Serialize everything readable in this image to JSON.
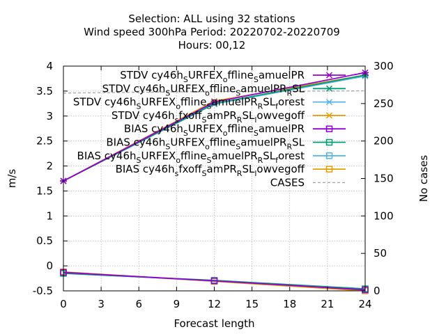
{
  "chart_data": {
    "type": "line",
    "title": [
      "Selection: ALL using    32 stations",
      "Wind speed 300hPa   Period: 20220702-20220709",
      "Hours:  00,12"
    ],
    "xlabel": "Forecast length",
    "ylabel": "m/s",
    "y2label": "No cases",
    "xlim": [
      0,
      24
    ],
    "ylim": [
      -0.5,
      4
    ],
    "y2lim": [
      0,
      300
    ],
    "xticks": [
      "0",
      "3",
      "6",
      "9",
      "12",
      "15",
      "18",
      "21",
      "24"
    ],
    "yticks": [
      "-0.5",
      "0",
      "0.5",
      "1",
      "1.5",
      "2",
      "2.5",
      "3",
      "3.5",
      "4"
    ],
    "y2ticks": [
      "0",
      "50",
      "100",
      "150",
      "200",
      "250",
      "300"
    ],
    "grid": true,
    "legend_position": "top-right",
    "x": [
      0,
      12,
      24
    ],
    "series": [
      {
        "name": "STDV cy46h_sURFEX_offline_samuelPR",
        "legend": [
          [
            "STDV cy46h",
            ""
          ],
          [
            "S",
            "sub"
          ],
          [
            "URFEX",
            ""
          ],
          [
            "o",
            "sub"
          ],
          [
            "ffline",
            ""
          ],
          [
            "S",
            "sub"
          ],
          [
            "amuelPR",
            ""
          ]
        ],
        "color": "#9400d3",
        "marker": "x",
        "axis": "y",
        "values": [
          1.7,
          3.28,
          3.87
        ]
      },
      {
        "name": "STDV cy46h_sURFEX_offline_samuelPR_RSL",
        "legend": [
          [
            "STDV cy46h",
            ""
          ],
          [
            "S",
            "sub"
          ],
          [
            "URFEX",
            ""
          ],
          [
            "o",
            "sub"
          ],
          [
            "ffline",
            ""
          ],
          [
            "S",
            "sub"
          ],
          [
            "amuelPR",
            ""
          ],
          [
            "R",
            "sub"
          ],
          [
            "SL",
            ""
          ]
        ],
        "color": "#009e73",
        "marker": "x",
        "axis": "y",
        "values": [
          1.7,
          3.25,
          3.82
        ]
      },
      {
        "name": "STDV cy46h_sURFEX_offline_samuelPR_RSL_forest",
        "legend": [
          [
            "STDV cy46h",
            ""
          ],
          [
            "S",
            "sub"
          ],
          [
            "URFEX",
            ""
          ],
          [
            "o",
            "sub"
          ],
          [
            "ffline",
            ""
          ],
          [
            "S",
            "sub"
          ],
          [
            "amuelPR",
            ""
          ],
          [
            "R",
            "sub"
          ],
          [
            "SL",
            ""
          ],
          [
            "f",
            "sub"
          ],
          [
            "orest",
            ""
          ]
        ],
        "color": "#56b4e9",
        "marker": "x",
        "axis": "y",
        "values": [
          1.7,
          3.24,
          3.8
        ]
      },
      {
        "name": "STDV cy46h_sfxoff_samPR_RSL_lowvegoff",
        "legend": [
          [
            "STDV cy46h",
            ""
          ],
          [
            "s",
            "sub"
          ],
          [
            "fxoff",
            ""
          ],
          [
            "S",
            "sub"
          ],
          [
            "amPR",
            ""
          ],
          [
            "R",
            "sub"
          ],
          [
            "SL",
            ""
          ],
          [
            "l",
            "sub"
          ],
          [
            "owvegoff",
            ""
          ]
        ],
        "color": "#e69f00",
        "marker": "x",
        "axis": "y",
        "values": [
          1.7,
          3.3,
          3.82
        ]
      },
      {
        "name": "BIAS cy46h_sURFEX_offline_samuelPR",
        "legend": [
          [
            "BIAS cy46h",
            ""
          ],
          [
            "S",
            "sub"
          ],
          [
            "URFEX",
            ""
          ],
          [
            "o",
            "sub"
          ],
          [
            "ffline",
            ""
          ],
          [
            "S",
            "sub"
          ],
          [
            "amuelPR",
            ""
          ]
        ],
        "color": "#9400d3",
        "marker": "square",
        "axis": "y",
        "values": [
          -0.13,
          -0.3,
          -0.48
        ]
      },
      {
        "name": "BIAS cy46h_sURFEX_offline_samuelPR_RSL",
        "legend": [
          [
            "BIAS cy46h",
            ""
          ],
          [
            "S",
            "sub"
          ],
          [
            "URFEX",
            ""
          ],
          [
            "o",
            "sub"
          ],
          [
            "ffline",
            ""
          ],
          [
            "S",
            "sub"
          ],
          [
            "amuelPR",
            ""
          ],
          [
            "R",
            "sub"
          ],
          [
            "SL",
            ""
          ]
        ],
        "color": "#009e73",
        "marker": "square",
        "axis": "y",
        "values": [
          -0.15,
          -0.29,
          -0.46
        ]
      },
      {
        "name": "BIAS cy46h_sURFEX_offline_samuelPR_RSL_forest",
        "legend": [
          [
            "BIAS cy46h",
            ""
          ],
          [
            "S",
            "sub"
          ],
          [
            "URFEX",
            ""
          ],
          [
            "o",
            "sub"
          ],
          [
            "ffline",
            ""
          ],
          [
            "S",
            "sub"
          ],
          [
            "amuelPR",
            ""
          ],
          [
            "R",
            "sub"
          ],
          [
            "SL",
            ""
          ],
          [
            "f",
            "sub"
          ],
          [
            "orest",
            ""
          ]
        ],
        "color": "#56b4e9",
        "marker": "square",
        "axis": "y",
        "values": [
          -0.14,
          -0.3,
          -0.46
        ]
      },
      {
        "name": "BIAS cy46h_sfxoff_samPR_RSL_lowvegoff",
        "legend": [
          [
            "BIAS cy46h",
            ""
          ],
          [
            "s",
            "sub"
          ],
          [
            "fxoff",
            ""
          ],
          [
            "S",
            "sub"
          ],
          [
            "amPR",
            ""
          ],
          [
            "R",
            "sub"
          ],
          [
            "SL",
            ""
          ],
          [
            "l",
            "sub"
          ],
          [
            "owvegoff",
            ""
          ]
        ],
        "color": "#e69f00",
        "marker": "square",
        "axis": "y",
        "values": [
          -0.12,
          -0.31,
          -0.5
        ]
      },
      {
        "name": "CASES",
        "legend": [
          [
            "CASES",
            ""
          ]
        ],
        "color": "#a0a0a0",
        "marker": "none",
        "dashed": true,
        "axis": "y2",
        "values": [
          264,
          266,
          267
        ]
      }
    ]
  }
}
